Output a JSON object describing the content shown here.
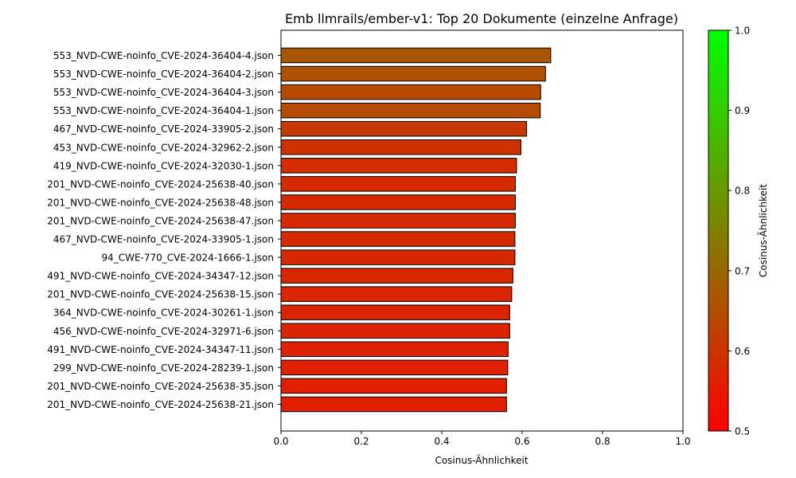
{
  "chart_data": {
    "type": "bar",
    "orientation": "horizontal",
    "title": "Emb llmrails/ember-v1: Top 20 Dokumente (einzelne Anfrage)",
    "xlabel": "Cosinus-Ähnlichkeit",
    "ylabel": "",
    "xlim": [
      0,
      1.0
    ],
    "x_ticks": [
      "0.0",
      "0.2",
      "0.4",
      "0.6",
      "0.8",
      "1.0"
    ],
    "grid": false,
    "categories": [
      "553_NVD-CWE-noinfo_CVE-2024-36404-4.json",
      "553_NVD-CWE-noinfo_CVE-2024-36404-2.json",
      "553_NVD-CWE-noinfo_CVE-2024-36404-3.json",
      "553_NVD-CWE-noinfo_CVE-2024-36404-1.json",
      "467_NVD-CWE-noinfo_CVE-2024-33905-2.json",
      "453_NVD-CWE-noinfo_CVE-2024-32962-2.json",
      "419_NVD-CWE-noinfo_CVE-2024-32030-1.json",
      "201_NVD-CWE-noinfo_CVE-2024-25638-40.json",
      "201_NVD-CWE-noinfo_CVE-2024-25638-48.json",
      "201_NVD-CWE-noinfo_CVE-2024-25638-47.json",
      "467_NVD-CWE-noinfo_CVE-2024-33905-1.json",
      "94_CWE-770_CVE-2024-1666-1.json",
      "491_NVD-CWE-noinfo_CVE-2024-34347-12.json",
      "201_NVD-CWE-noinfo_CVE-2024-25638-15.json",
      "364_NVD-CWE-noinfo_CVE-2024-30261-1.json",
      "456_NVD-CWE-noinfo_CVE-2024-32971-6.json",
      "491_NVD-CWE-noinfo_CVE-2024-34347-11.json",
      "299_NVD-CWE-noinfo_CVE-2024-28239-1.json",
      "201_NVD-CWE-noinfo_CVE-2024-25638-35.json",
      "201_NVD-CWE-noinfo_CVE-2024-25638-21.json"
    ],
    "values": [
      0.671,
      0.658,
      0.646,
      0.645,
      0.611,
      0.597,
      0.586,
      0.583,
      0.583,
      0.583,
      0.582,
      0.582,
      0.577,
      0.574,
      0.569,
      0.569,
      0.565,
      0.564,
      0.561,
      0.561
    ],
    "colorbar": {
      "label": "Cosinus-Ähnlichkeit",
      "range": [
        0.5,
        1.0
      ],
      "ticks": [
        "0.5",
        "0.6",
        "0.7",
        "0.8",
        "0.9",
        "1.0"
      ],
      "color_low": "#ff0000",
      "color_high": "#00ff00"
    },
    "bar_edge_color": "#000000"
  }
}
